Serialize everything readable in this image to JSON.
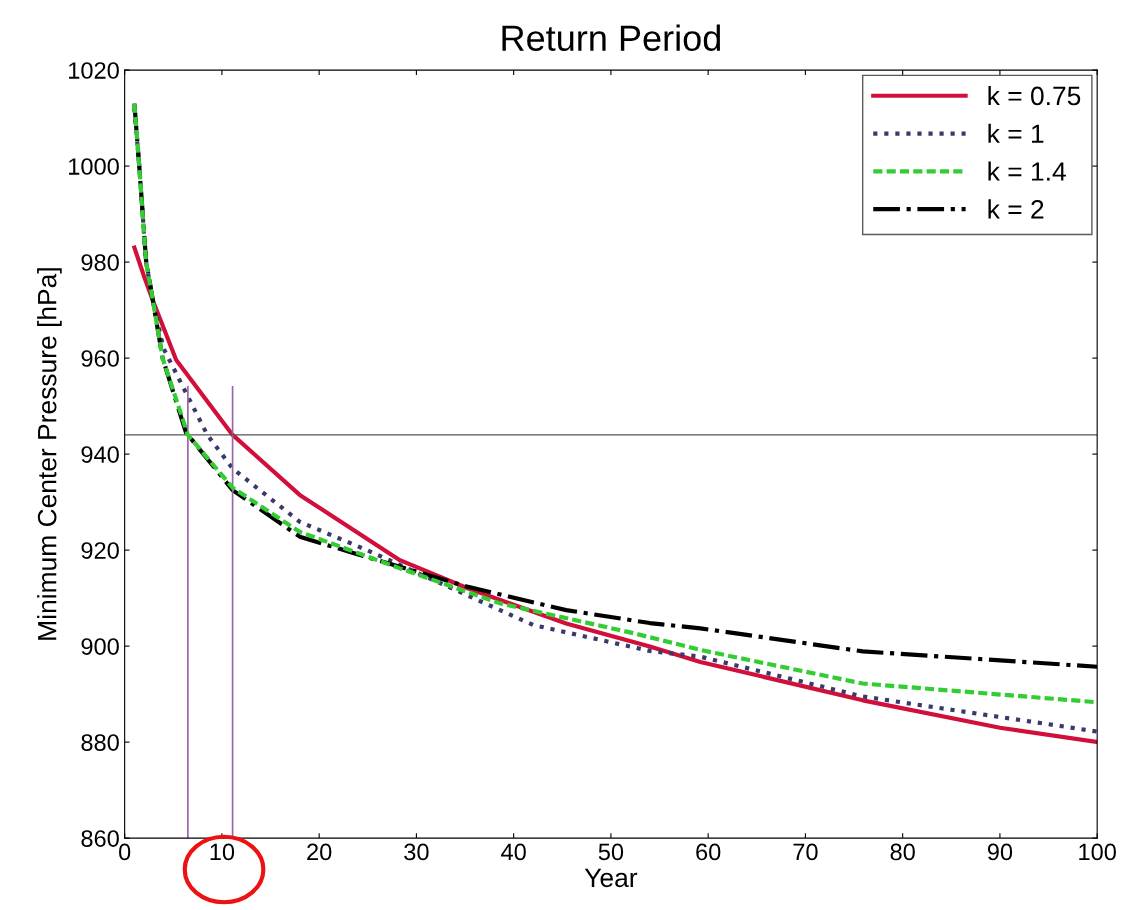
{
  "chart_data": {
    "type": "line",
    "title": "Return Period",
    "xlabel": "Year",
    "ylabel": "Minimum Center Pressure [hPa]",
    "xlim": [
      0,
      100
    ],
    "xticks": [
      0,
      10,
      20,
      30,
      40,
      50,
      60,
      70,
      80,
      90,
      100
    ],
    "ylim": [
      860,
      1020
    ],
    "yticks": [
      860,
      880,
      900,
      920,
      940,
      960,
      980,
      1000,
      1020
    ],
    "grid": false,
    "legend": "top right",
    "ref_lines": [
      {
        "axis": "y",
        "value": 944,
        "color": "#555555",
        "line_style": "solid"
      }
    ],
    "series": [
      {
        "name": "k = 0.75",
        "color": "#d0103a",
        "line_style": "solid",
        "x": [
          1,
          2,
          2.9,
          5.3,
          11.1,
          18,
          28.3,
          35.2,
          45.4,
          54,
          59.2,
          75.9,
          90,
          100
        ],
        "values": [
          983,
          977,
          972,
          959.6,
          944,
          931.5,
          917.9,
          912.1,
          904.7,
          899.9,
          896.7,
          888.7,
          883,
          880
        ]
      },
      {
        "name": "k = 1",
        "color": "#3a3a6a",
        "line_style": "dotted",
        "x": [
          1,
          1.5,
          2.2,
          2.9,
          4,
          8.5,
          11.1,
          18,
          24.9,
          42,
          54,
          59.2,
          75.9,
          100
        ],
        "values": [
          1012,
          1000,
          980,
          972,
          962,
          944,
          937,
          925.9,
          920,
          904.4,
          899,
          897.8,
          889.5,
          882.2
        ]
      },
      {
        "name": "k = 1.4",
        "color": "#33cc33",
        "line_style": "dashed",
        "x": [
          1,
          1.5,
          2.2,
          2.9,
          3.9,
          6.5,
          11.1,
          18,
          28.3,
          38.6,
          52.3,
          59.2,
          75.9,
          100
        ],
        "values": [
          1013,
          1000,
          980,
          972,
          960,
          944,
          933,
          923.8,
          916.2,
          908.9,
          902.7,
          899.2,
          892.2,
          888.3
        ]
      },
      {
        "name": "k = 2",
        "color": "#000000",
        "line_style": "dashdot",
        "x": [
          1,
          1.5,
          2.2,
          2.9,
          3.9,
          6.3,
          11.1,
          18,
          23.5,
          35.2,
          45.4,
          54,
          59.2,
          75.9,
          100
        ],
        "values": [
          1013,
          1000,
          980.4,
          972,
          960,
          944.5,
          932.5,
          922.8,
          919.4,
          912.4,
          907.5,
          904.8,
          903.7,
          898.9,
          895.7
        ]
      },
      {
        "color": "#9966aa",
        "line_style": "solid",
        "x": [
          6.5,
          6.5
        ],
        "values": [
          860,
          954
        ]
      },
      {
        "color": "#9966aa",
        "line_style": "solid",
        "x": [
          11.1,
          11.1
        ],
        "values": [
          860,
          954
        ]
      }
    ]
  }
}
